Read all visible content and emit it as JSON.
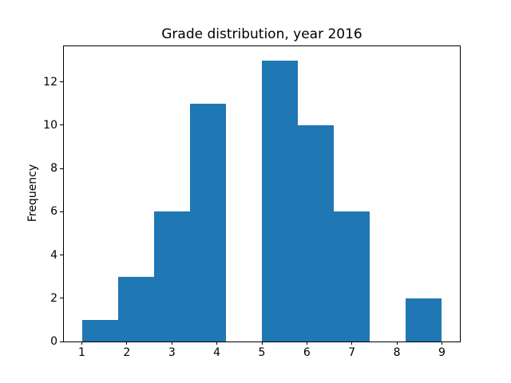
{
  "figure": {
    "background": "#ffffff"
  },
  "chart_data": {
    "type": "bar",
    "subtype": "histogram",
    "title": "Grade distribution, year 2016",
    "xlabel": "",
    "ylabel": "Frequency",
    "bin_edges": [
      1.0,
      1.8,
      2.6,
      3.4,
      4.2,
      5.0,
      5.8,
      6.6,
      7.4,
      8.2,
      9.0
    ],
    "counts": [
      1,
      3,
      6,
      11,
      0,
      13,
      10,
      6,
      0,
      2
    ],
    "xticks": [
      1,
      2,
      3,
      4,
      5,
      6,
      7,
      8,
      9
    ],
    "yticks": [
      0,
      2,
      4,
      6,
      8,
      10,
      12
    ],
    "xlim": [
      0.6,
      9.4
    ],
    "ylim": [
      0,
      13.65
    ],
    "bar_color": "#1f77b4",
    "axis_color": "#000000",
    "grid": false,
    "legend_position": "none"
  }
}
